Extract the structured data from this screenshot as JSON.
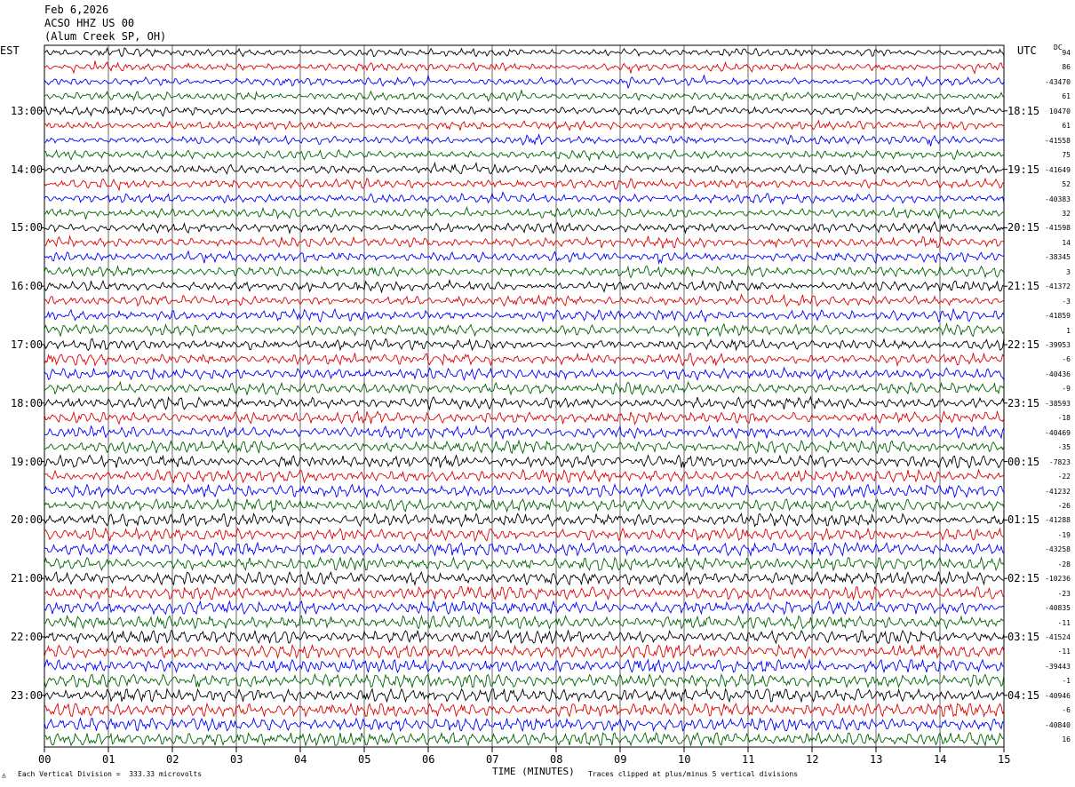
{
  "header": {
    "date": "Feb 6,2026",
    "station": "ACSO HHZ US 00",
    "location": "(Alum Creek SP, OH)"
  },
  "left_label": "EST",
  "right_label": "UTC",
  "dc_label": "DC",
  "footer": {
    "scale_note": "Each Vertical Division =  333.33 microvolts",
    "xlabel": "TIME (MINUTES)",
    "clip_note": "Traces clipped at plus/minus 5 vertical divisions"
  },
  "chart_data": {
    "type": "line",
    "title": "",
    "xlabel": "TIME (MINUTES)",
    "xlim": [
      0,
      15
    ],
    "x_ticks": [
      "00",
      "01",
      "02",
      "03",
      "04",
      "05",
      "06",
      "07",
      "08",
      "09",
      "10",
      "11",
      "12",
      "13",
      "14",
      "15"
    ],
    "trace_colors": [
      "#000000",
      "#e00000",
      "#0000ff",
      "#006400"
    ],
    "rows_per_hour": 4,
    "est_hour_labels": [
      "13:00",
      "14:00",
      "15:00",
      "16:00",
      "17:00",
      "18:00",
      "19:00",
      "20:00",
      "21:00",
      "22:00",
      "23:00"
    ],
    "utc_hour_labels": [
      "18:15",
      "19:15",
      "20:15",
      "21:15",
      "22:15",
      "23:15",
      "00:15",
      "01:15",
      "02:15",
      "03:15",
      "04:15"
    ],
    "dc_offsets": [
      "94",
      "86",
      "-43470",
      "61",
      "10470",
      "61",
      "-41558",
      "75",
      "-41649",
      "52",
      "-40383",
      "32",
      "-41598",
      "14",
      "-38345",
      "3",
      "-41372",
      "-3",
      "-41859",
      "1",
      "-39953",
      "-6",
      "-40436",
      "-9",
      "-38593",
      "-18",
      "-40469",
      "-35",
      "-7823",
      "-22",
      "-41232",
      "-26",
      "-41288",
      "-19",
      "-43258",
      "-28",
      "-10236",
      "-23",
      "-40835",
      "-11",
      "-41524",
      "-11",
      "-39443",
      "-1",
      "-40946",
      "-6",
      "-40840",
      "16"
    ]
  }
}
